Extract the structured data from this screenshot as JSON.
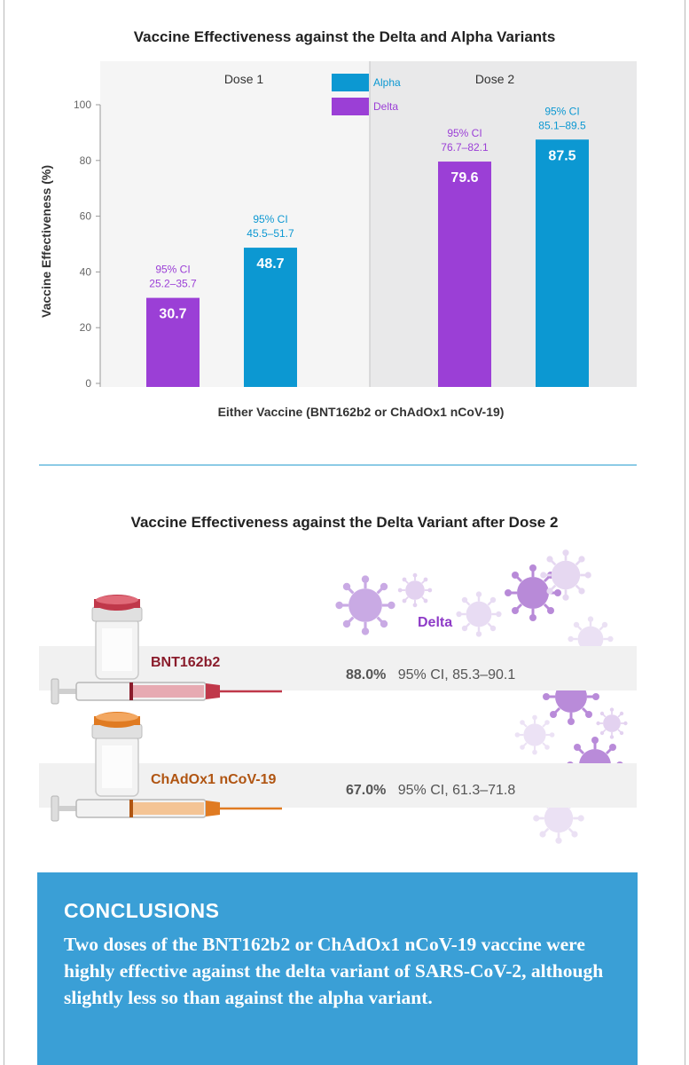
{
  "chart_data": {
    "type": "bar",
    "title": "Vaccine Effectiveness against the Delta and Alpha Variants",
    "ylabel": "Vaccine Effectiveness (%)",
    "xlabel": "Either Vaccine (BNT162b2 or ChAdOx1 nCoV-19)",
    "ylim": [
      0,
      100
    ],
    "yticks": [
      0,
      20,
      40,
      60,
      80,
      100
    ],
    "groups": [
      "Dose 1",
      "Dose 2"
    ],
    "legend": {
      "position": "top-center",
      "entries": [
        "Alpha",
        "Delta"
      ]
    },
    "series": [
      {
        "name": "Delta",
        "color": "#9b3fd6",
        "values": [
          30.7,
          79.6
        ],
        "labels": [
          "30.7",
          "79.6"
        ],
        "ci_label": "95% CI",
        "ci": [
          "25.2–35.7",
          "76.7–82.1"
        ]
      },
      {
        "name": "Alpha",
        "color": "#0c98d2",
        "values": [
          48.7,
          87.5
        ],
        "labels": [
          "48.7",
          "87.5"
        ],
        "ci_label": "95% CI",
        "ci": [
          "45.5–51.7",
          "85.1–89.5"
        ]
      }
    ]
  },
  "delta_panel": {
    "title": "Vaccine Effectiveness against the Delta Variant after Dose 2",
    "variant_label": "Delta",
    "rows": [
      {
        "vaccine": "BNT162b2",
        "effectiveness": "88.0%",
        "ci": "95% CI, 85.3–90.1",
        "color": "#c0384a"
      },
      {
        "vaccine": "ChAdOx1 nCoV-19",
        "effectiveness": "67.0%",
        "ci": "95% CI, 61.3–71.8",
        "color": "#e07b22"
      }
    ]
  },
  "conclusions": {
    "heading": "CONCLUSIONS",
    "text": "Two doses of the BNT162b2 or ChAdOx1 nCoV-19 vaccine were highly effective against the delta variant of SARS-CoV-2, although slightly less so than against the alpha variant."
  }
}
